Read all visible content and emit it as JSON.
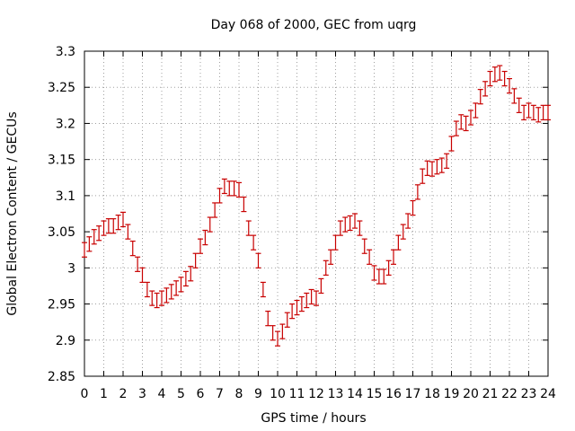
{
  "chart_data": {
    "type": "scatter",
    "title": "Day 068 of 2000, GEC from uqrg",
    "xlabel": "GPS time / hours",
    "ylabel": "Global Electron Content / GECUs",
    "xlim": [
      0,
      24
    ],
    "ylim": [
      2.85,
      3.3
    ],
    "xticks": [
      0,
      1,
      2,
      3,
      4,
      5,
      6,
      7,
      8,
      9,
      10,
      11,
      12,
      13,
      14,
      15,
      16,
      17,
      18,
      19,
      20,
      21,
      22,
      23,
      24
    ],
    "yticks": [
      2.85,
      2.9,
      2.95,
      3.0,
      3.05,
      3.1,
      3.15,
      3.2,
      3.25,
      3.3
    ],
    "ytick_labels": [
      "2.85",
      "2.9",
      "2.95",
      "3",
      "3.05",
      "3.1",
      "3.15",
      "3.2",
      "3.25",
      "3.3"
    ],
    "grid": true,
    "marker": "error-bar",
    "color": "#c80000",
    "error": 0.01,
    "x": [
      0.0,
      0.25,
      0.5,
      0.75,
      1.0,
      1.25,
      1.5,
      1.75,
      2.0,
      2.25,
      2.5,
      2.75,
      3.0,
      3.25,
      3.5,
      3.75,
      4.0,
      4.25,
      4.5,
      4.75,
      5.0,
      5.25,
      5.5,
      5.75,
      6.0,
      6.25,
      6.5,
      6.75,
      7.0,
      7.25,
      7.5,
      7.75,
      8.0,
      8.25,
      8.5,
      8.75,
      9.0,
      9.25,
      9.5,
      9.75,
      10.0,
      10.25,
      10.5,
      10.75,
      11.0,
      11.25,
      11.5,
      11.75,
      12.0,
      12.25,
      12.5,
      12.75,
      13.0,
      13.25,
      13.5,
      13.75,
      14.0,
      14.25,
      14.5,
      14.75,
      15.0,
      15.25,
      15.5,
      15.75,
      16.0,
      16.25,
      16.5,
      16.75,
      17.0,
      17.25,
      17.5,
      17.75,
      18.0,
      18.25,
      18.5,
      18.75,
      19.0,
      19.25,
      19.5,
      19.75,
      20.0,
      20.25,
      20.5,
      20.75,
      21.0,
      21.25,
      21.5,
      21.75,
      22.0,
      22.25,
      22.5,
      22.75,
      23.0,
      23.25,
      23.5,
      23.75,
      24.0
    ],
    "y": [
      3.025,
      3.033,
      3.043,
      3.048,
      3.055,
      3.058,
      3.058,
      3.063,
      3.067,
      3.05,
      3.027,
      3.005,
      2.99,
      2.97,
      2.958,
      2.955,
      2.958,
      2.962,
      2.967,
      2.972,
      2.977,
      2.985,
      2.992,
      3.01,
      3.03,
      3.042,
      3.06,
      3.08,
      3.1,
      3.113,
      3.11,
      3.11,
      3.108,
      3.088,
      3.055,
      3.035,
      3.01,
      2.97,
      2.93,
      2.91,
      2.902,
      2.912,
      2.928,
      2.94,
      2.945,
      2.95,
      2.955,
      2.96,
      2.958,
      2.975,
      3.0,
      3.015,
      3.035,
      3.055,
      3.06,
      3.062,
      3.065,
      3.055,
      3.03,
      3.015,
      2.993,
      2.988,
      2.988,
      3.0,
      3.015,
      3.035,
      3.05,
      3.065,
      3.083,
      3.105,
      3.127,
      3.138,
      3.137,
      3.14,
      3.142,
      3.148,
      3.172,
      3.193,
      3.202,
      3.2,
      3.208,
      3.218,
      3.237,
      3.248,
      3.262,
      3.268,
      3.27,
      3.262,
      3.252,
      3.238,
      3.225,
      3.215,
      3.218,
      3.215,
      3.212,
      3.215,
      3.215
    ]
  }
}
